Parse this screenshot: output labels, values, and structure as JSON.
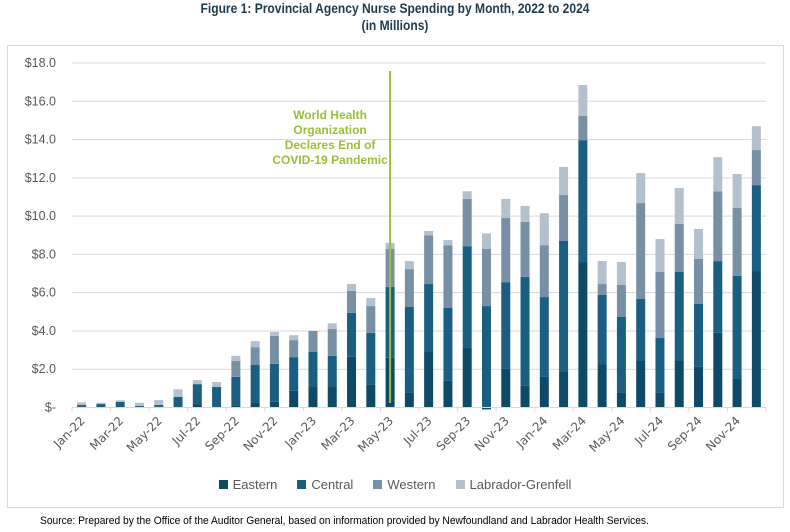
{
  "chart_data": {
    "type": "bar",
    "stacked": true,
    "title": "Figure 1: Provincial Agency Nurse Spending by Month, 2022 to 2024",
    "subtitle": "(in Millions)",
    "xlabel": "",
    "ylabel": "",
    "ylim": [
      0,
      18
    ],
    "y_ticks": [
      0,
      2,
      4,
      6,
      8,
      10,
      12,
      14,
      16,
      18
    ],
    "y_tick_labels": [
      "$-",
      "$2.0",
      "$4.0",
      "$6.0",
      "$8.0",
      "$10.0",
      "$12.0",
      "$14.0",
      "$16.0",
      "$18.0"
    ],
    "grid": true,
    "legend_position": "bottom",
    "categories": [
      "Jan-22",
      "Feb-22",
      "Mar-22",
      "Apr-22",
      "May-22",
      "Jun-22",
      "Jul-22",
      "Aug-22",
      "Sep-22",
      "Oct-22",
      "Nov-22",
      "Dec-22",
      "Jan-23",
      "Feb-23",
      "Mar-23",
      "Apr-23",
      "May-23",
      "Jun-23",
      "Jul-23",
      "Aug-23",
      "Sep-23",
      "Oct-23",
      "Nov-23",
      "Dec-23",
      "Jan-24",
      "Feb-24",
      "Mar-24",
      "Apr-24",
      "May-24",
      "Jun-24",
      "Jul-24",
      "Aug-24",
      "Sep-24",
      "Oct-24",
      "Nov-24",
      "Dec-24"
    ],
    "x_tick_labels": [
      "Jan-22",
      "Mar-22",
      "May-22",
      "Jul-22",
      "Sep-22",
      "Nov-22",
      "Jan-23",
      "Mar-23",
      "May-23",
      "Jul-23",
      "Sep-23",
      "Nov-23",
      "Jan-24",
      "Mar-24",
      "May-24",
      "Jul-24",
      "Sep-24",
      "Nov-24"
    ],
    "series": [
      {
        "name": "Eastern",
        "color": "#0e4a68",
        "values": [
          0.03,
          0.05,
          0.05,
          0.03,
          0.03,
          0.05,
          0.18,
          0.05,
          0.1,
          0.28,
          0.3,
          0.87,
          1.07,
          1.07,
          2.65,
          1.18,
          2.6,
          0.8,
          2.9,
          1.4,
          3.15,
          -0.1,
          2.05,
          1.16,
          1.6,
          1.9,
          7.6,
          2.27,
          0.8,
          2.43,
          0.8,
          2.43,
          2.12,
          3.9,
          1.49,
          7.13
        ]
      },
      {
        "name": "Central",
        "color": "#1a5f82",
        "values": [
          0.1,
          0.13,
          0.24,
          0.06,
          0.1,
          0.51,
          1.04,
          1.02,
          1.5,
          1.94,
          1.98,
          1.76,
          1.83,
          1.63,
          2.3,
          2.72,
          3.7,
          4.45,
          3.55,
          3.8,
          5.28,
          5.3,
          4.5,
          5.67,
          4.17,
          6.8,
          6.37,
          3.61,
          3.93,
          3.24,
          2.83,
          4.65,
          3.29,
          3.75,
          5.39,
          4.49
        ]
      },
      {
        "name": "Western",
        "color": "#7790a6",
        "values": [
          0.0,
          0.0,
          0.0,
          0.0,
          0.0,
          0.0,
          0.0,
          0.0,
          0.83,
          0.93,
          1.47,
          0.89,
          1.1,
          1.4,
          1.15,
          1.4,
          1.98,
          1.98,
          2.55,
          3.28,
          2.47,
          2.98,
          3.35,
          2.87,
          2.71,
          2.4,
          1.26,
          0.57,
          1.67,
          5.01,
          3.45,
          2.51,
          2.35,
          3.65,
          3.55,
          1.83
        ]
      },
      {
        "name": "Labrador-Grenfell",
        "color": "#b4c0cc",
        "values": [
          0.14,
          0.07,
          0.09,
          0.16,
          0.26,
          0.39,
          0.21,
          0.26,
          0.27,
          0.32,
          0.2,
          0.26,
          0.0,
          0.3,
          0.35,
          0.42,
          0.32,
          0.42,
          0.23,
          0.27,
          0.4,
          0.82,
          1.0,
          0.83,
          1.67,
          1.47,
          1.62,
          1.2,
          1.2,
          1.57,
          1.72,
          1.88,
          1.57,
          1.78,
          1.77,
          1.25
        ]
      }
    ],
    "annotations": [
      {
        "text_lines": [
          "World Health",
          "Organization",
          "Declares End of",
          "COVID-19 Pandemic"
        ],
        "at_category": "May-23",
        "type": "vertical-line",
        "color": "#9bbf3a"
      }
    ]
  },
  "source": "Source: Prepared by the Office of the Auditor General, based on information provided by Newfoundland and Labrador Health Services."
}
